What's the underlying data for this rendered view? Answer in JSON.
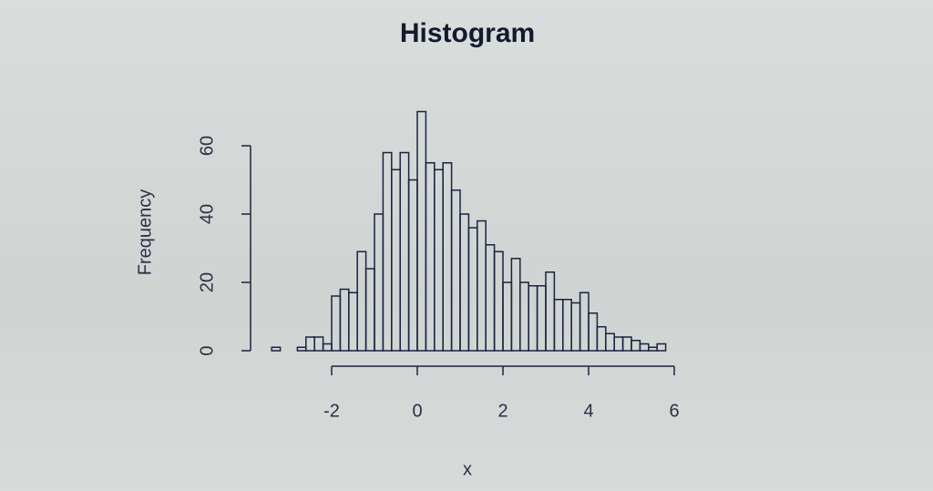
{
  "chart_data": {
    "type": "histogram",
    "title": "Histogram",
    "x_label": "x",
    "y_label": "Frequency",
    "bins": [
      -3.4,
      -3.2,
      -3.0,
      -2.8,
      -2.6,
      -2.4,
      -2.2,
      -2.0,
      -1.8,
      -1.6,
      -1.4,
      -1.2,
      -1.0,
      -0.8,
      -0.6,
      -0.4,
      -0.2,
      0.0,
      0.2,
      0.4,
      0.6,
      0.8,
      1.0,
      1.2,
      1.4,
      1.6,
      1.8,
      2.0,
      2.2,
      2.4,
      2.6,
      2.8,
      3.0,
      3.2,
      3.4,
      3.6,
      3.8,
      4.0,
      4.2,
      4.4,
      4.6,
      4.8,
      5.0,
      5.2,
      5.4,
      5.6,
      5.8
    ],
    "counts": [
      1,
      0,
      0,
      1,
      4,
      4,
      2,
      16,
      18,
      17,
      29,
      24,
      40,
      58,
      53,
      58,
      50,
      70,
      55,
      53,
      55,
      47,
      40,
      36,
      38,
      31,
      29,
      20,
      27,
      20,
      19,
      19,
      23,
      15,
      15,
      14,
      17,
      11,
      7,
      5,
      4,
      4,
      3,
      2,
      1,
      2
    ],
    "color": "#1a2340",
    "xlim": [
      -4,
      7
    ],
    "xticks": [
      -2,
      0,
      2,
      4,
      6
    ],
    "ylim": [
      0,
      72
    ],
    "yticks": [
      0,
      20,
      40,
      60
    ]
  }
}
